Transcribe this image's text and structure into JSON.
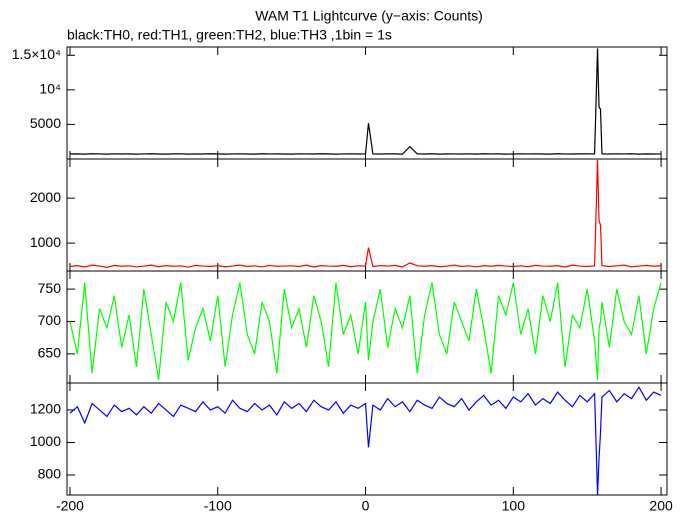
{
  "chart_data": [
    {
      "type": "line",
      "title": "WAM T1 Lightcurve (y−axis: Counts)",
      "subtitle": "black:TH0, red:TH1, green:TH2, blue:TH3 ,1bin = 1s",
      "x": [
        -200,
        -195,
        -190,
        -185,
        -180,
        -175,
        -170,
        -165,
        -160,
        -155,
        -150,
        -145,
        -140,
        -135,
        -130,
        -125,
        -120,
        -115,
        -110,
        -105,
        -100,
        -95,
        -90,
        -85,
        -80,
        -75,
        -70,
        -65,
        -60,
        -55,
        -50,
        -45,
        -40,
        -35,
        -30,
        -25,
        -20,
        -15,
        -10,
        -5,
        0,
        2,
        5,
        10,
        15,
        20,
        25,
        30,
        35,
        40,
        45,
        50,
        55,
        60,
        65,
        70,
        75,
        80,
        85,
        90,
        95,
        100,
        105,
        110,
        115,
        120,
        125,
        130,
        135,
        140,
        145,
        150,
        155,
        157,
        158,
        159,
        160,
        165,
        170,
        175,
        180,
        185,
        190,
        195,
        200
      ],
      "series": [
        {
          "name": "TH0",
          "color": "#000000",
          "values": [
            720,
            740,
            710,
            760,
            730,
            700,
            750,
            720,
            740,
            710,
            730,
            760,
            720,
            700,
            740,
            750,
            710,
            730,
            720,
            760,
            740,
            710,
            730,
            750,
            720,
            700,
            760,
            730,
            740,
            720,
            710,
            750,
            730,
            720,
            760,
            740,
            700,
            730,
            750,
            720,
            740,
            5200,
            730,
            720,
            750,
            740,
            700,
            1800,
            730,
            720,
            760,
            710,
            740,
            730,
            720,
            750,
            700,
            760,
            730,
            740,
            710,
            720,
            750,
            730,
            740,
            720,
            710,
            760,
            730,
            720,
            740,
            750,
            730,
            16000,
            7500,
            7200,
            740,
            720,
            750,
            730,
            760,
            710,
            740,
            720,
            730
          ]
        }
      ],
      "xlim": [
        -202,
        204
      ],
      "xticks": [
        -200,
        -100,
        0,
        100,
        200
      ],
      "ylim": [
        0,
        16200
      ],
      "yticks": [
        5000,
        {
          "value": 10000,
          "label": "10⁴"
        },
        {
          "value": 15000,
          "label": "1.5×10⁴"
        }
      ]
    },
    {
      "type": "line",
      "x": [
        -200,
        -195,
        -190,
        -185,
        -180,
        -175,
        -170,
        -165,
        -160,
        -155,
        -150,
        -145,
        -140,
        -135,
        -130,
        -125,
        -120,
        -115,
        -110,
        -105,
        -100,
        -95,
        -90,
        -85,
        -80,
        -75,
        -70,
        -65,
        -60,
        -55,
        -50,
        -45,
        -40,
        -35,
        -30,
        -25,
        -20,
        -15,
        -10,
        -5,
        0,
        2,
        5,
        10,
        15,
        20,
        25,
        30,
        35,
        40,
        45,
        50,
        55,
        60,
        65,
        70,
        75,
        80,
        85,
        90,
        95,
        100,
        105,
        110,
        115,
        120,
        125,
        130,
        135,
        140,
        145,
        150,
        155,
        157,
        158,
        159,
        160,
        165,
        170,
        175,
        180,
        185,
        190,
        195,
        200
      ],
      "series": [
        {
          "name": "TH1",
          "color": "#ff0000",
          "values": [
            480,
            500,
            470,
            510,
            490,
            460,
            505,
            485,
            495,
            470,
            490,
            510,
            475,
            500,
            485,
            495,
            465,
            505,
            490,
            480,
            500,
            475,
            490,
            510,
            480,
            495,
            470,
            505,
            485,
            490,
            495,
            480,
            510,
            470,
            500,
            490,
            485,
            505,
            475,
            495,
            490,
            900,
            480,
            500,
            490,
            505,
            470,
            560,
            495,
            485,
            500,
            475,
            490,
            510,
            480,
            495,
            470,
            500,
            485,
            505,
            490,
            480,
            495,
            475,
            505,
            490,
            485,
            500,
            470,
            510,
            490,
            480,
            495,
            2850,
            1500,
            1400,
            500,
            480,
            495,
            510,
            470,
            490,
            505,
            485,
            500
          ]
        }
      ],
      "xlim": [
        -202,
        204
      ],
      "xticks": [
        -200,
        -100,
        0,
        100,
        200
      ],
      "ylim": [
        380,
        2870
      ],
      "yticks": [
        1000,
        2000
      ]
    },
    {
      "type": "line",
      "x": [
        -200,
        -195,
        -190,
        -185,
        -180,
        -175,
        -170,
        -165,
        -160,
        -155,
        -150,
        -145,
        -140,
        -135,
        -130,
        -125,
        -120,
        -115,
        -110,
        -105,
        -100,
        -95,
        -90,
        -85,
        -80,
        -75,
        -70,
        -65,
        -60,
        -55,
        -50,
        -45,
        -40,
        -35,
        -30,
        -25,
        -20,
        -15,
        -10,
        -5,
        0,
        2,
        5,
        10,
        15,
        20,
        25,
        30,
        35,
        40,
        45,
        50,
        55,
        60,
        65,
        70,
        75,
        80,
        85,
        90,
        95,
        100,
        105,
        110,
        115,
        120,
        125,
        130,
        135,
        140,
        145,
        150,
        155,
        157,
        158,
        159,
        160,
        165,
        170,
        175,
        180,
        185,
        190,
        195,
        200
      ],
      "series": [
        {
          "name": "TH2",
          "color": "#00ff00",
          "values": [
            700,
            650,
            760,
            620,
            720,
            690,
            740,
            660,
            710,
            630,
            750,
            680,
            610,
            730,
            700,
            760,
            640,
            690,
            720,
            670,
            740,
            630,
            710,
            760,
            680,
            650,
            730,
            700,
            620,
            750,
            690,
            720,
            660,
            740,
            700,
            630,
            760,
            680,
            710,
            650,
            730,
            640,
            700,
            750,
            660,
            720,
            690,
            740,
            620,
            710,
            760,
            680,
            650,
            730,
            700,
            670,
            750,
            690,
            620,
            740,
            710,
            760,
            680,
            720,
            650,
            740,
            700,
            760,
            630,
            710,
            690,
            750,
            670,
            610,
            690,
            700,
            730,
            660,
            750,
            700,
            680,
            740,
            650,
            720,
            760
          ]
        }
      ],
      "xlim": [
        -202,
        204
      ],
      "xticks": [
        -200,
        -100,
        0,
        100,
        200
      ],
      "ylim": [
        605,
        778
      ],
      "yticks": [
        650,
        700,
        750
      ]
    },
    {
      "type": "line",
      "x": [
        -200,
        -195,
        -190,
        -185,
        -180,
        -175,
        -170,
        -165,
        -160,
        -155,
        -150,
        -145,
        -140,
        -135,
        -130,
        -125,
        -120,
        -115,
        -110,
        -105,
        -100,
        -95,
        -90,
        -85,
        -80,
        -75,
        -70,
        -65,
        -60,
        -55,
        -50,
        -45,
        -40,
        -35,
        -30,
        -25,
        -20,
        -15,
        -10,
        -5,
        0,
        2,
        5,
        10,
        15,
        20,
        25,
        30,
        35,
        40,
        45,
        50,
        55,
        60,
        65,
        70,
        75,
        80,
        85,
        90,
        95,
        100,
        105,
        110,
        115,
        120,
        125,
        130,
        135,
        140,
        145,
        150,
        155,
        157,
        158,
        159,
        160,
        165,
        170,
        175,
        180,
        185,
        190,
        195,
        200
      ],
      "series": [
        {
          "name": "TH3",
          "color": "#0000ff",
          "values": [
            1180,
            1220,
            1120,
            1240,
            1200,
            1160,
            1230,
            1190,
            1210,
            1170,
            1220,
            1180,
            1240,
            1200,
            1160,
            1230,
            1210,
            1190,
            1250,
            1200,
            1220,
            1180,
            1260,
            1210,
            1190,
            1240,
            1200,
            1230,
            1170,
            1250,
            1210,
            1240,
            1190,
            1260,
            1220,
            1200,
            1250,
            1180,
            1230,
            1210,
            1240,
            970,
            1230,
            1200,
            1270,
            1220,
            1250,
            1190,
            1260,
            1230,
            1210,
            1280,
            1240,
            1220,
            1270,
            1200,
            1250,
            1290,
            1230,
            1260,
            1210,
            1280,
            1250,
            1300,
            1230,
            1270,
            1240,
            1310,
            1260,
            1220,
            1290,
            1250,
            1300,
            680,
            900,
            1060,
            1280,
            1320,
            1250,
            1300,
            1270,
            1340,
            1260,
            1310,
            1290
          ]
        }
      ],
      "xlim": [
        -202,
        204
      ],
      "xticks": [
        -200,
        -100,
        0,
        100,
        200
      ],
      "ylim": [
        677,
        1366
      ],
      "yticks": [
        800,
        1000,
        1200
      ]
    }
  ]
}
